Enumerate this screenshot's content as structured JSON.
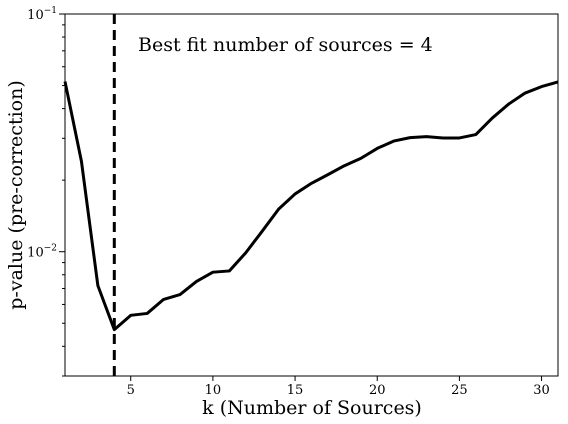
{
  "chart_data": {
    "type": "line",
    "title": "",
    "xlabel": "k (Number of Sources)",
    "ylabel": "p-value (pre-correction)",
    "xlim": [
      1,
      31
    ],
    "ylim": [
      0.003,
      0.1
    ],
    "yscale": "log",
    "grid": false,
    "x_ticks": [
      5,
      10,
      15,
      20,
      25,
      30
    ],
    "x_tick_labels": [
      "5",
      "10",
      "15",
      "20",
      "25",
      "30"
    ],
    "y_major_ticks": [
      0.01,
      0.1
    ],
    "y_tick_labels": [
      {
        "base": "10",
        "exp": "−2"
      },
      {
        "base": "10",
        "exp": "−1"
      }
    ],
    "series": [
      {
        "color": "#000000",
        "x": [
          1,
          2,
          3,
          4,
          5,
          6,
          7,
          8,
          9,
          10,
          11,
          12,
          13,
          14,
          15,
          16,
          17,
          18,
          19,
          20,
          21,
          22,
          23,
          24,
          25,
          26,
          27,
          28,
          29,
          30,
          31
        ],
        "values": [
          0.052,
          0.024,
          0.0072,
          0.0047,
          0.0054,
          0.0055,
          0.0063,
          0.0066,
          0.0075,
          0.0082,
          0.0083,
          0.0099,
          0.0122,
          0.0151,
          0.0175,
          0.0194,
          0.0211,
          0.023,
          0.0247,
          0.0272,
          0.0292,
          0.0302,
          0.0305,
          0.0301,
          0.0301,
          0.0311,
          0.0365,
          0.0418,
          0.0465,
          0.0495,
          0.0518
        ]
      }
    ],
    "vline": {
      "x": 4,
      "style": "dashed",
      "color": "#000000"
    },
    "annotation": "Best fit number of sources = 4"
  }
}
